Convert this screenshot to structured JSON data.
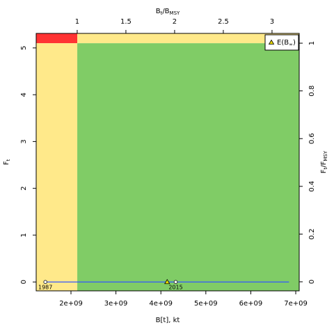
{
  "chart_data": {
    "type": "kobe",
    "xlabel": "B[t], kt",
    "xlabel_top": [
      "B",
      "t",
      "/B",
      "MSY"
    ],
    "ylabel": [
      "F",
      "t"
    ],
    "y2label": [
      "F",
      "t",
      "/F",
      "MSY"
    ],
    "xlim": [
      1226000000,
      7077000000
    ],
    "xticks": [
      {
        "value": 2000000000,
        "label": "2e+09"
      },
      {
        "value": 3000000000,
        "label": "3e+09"
      },
      {
        "value": 4000000000,
        "label": "4e+09"
      },
      {
        "value": 5000000000,
        "label": "5e+09"
      },
      {
        "value": 6000000000,
        "label": "6e+09"
      },
      {
        "value": 7000000000,
        "label": "7e+09"
      }
    ],
    "x2lim": [
      0.579,
      3.279
    ],
    "x2ticks": [
      1,
      1.5,
      2,
      2.5,
      3
    ],
    "ylim": [
      -0.19,
      5.31
    ],
    "yticks": [
      0,
      1,
      2,
      3,
      4,
      5
    ],
    "y2lim": [
      -0.038,
      1.041
    ],
    "y2ticks": [
      0,
      0.2,
      0.4,
      0.6,
      0.8,
      1
    ],
    "bmsy": 2140000000,
    "fmsy": 5.1,
    "region_colors": {
      "low_b_high_f": "#ff3333",
      "high_b_high_f": "#ffe98a",
      "low_b_low_f": "#ffe98a",
      "high_b_low_f": "#80cc66"
    },
    "trajectory": {
      "color": "#3355ff",
      "x": [
        1430000000,
        6850000000,
        4330000000
      ],
      "values": [
        0,
        0,
        0
      ],
      "labels": [
        "1987",
        null,
        "2015"
      ]
    },
    "equilibrium": {
      "name": [
        "E(B",
        "∞",
        ")"
      ],
      "color": "#e8d800",
      "x": 4140000000,
      "value": 0
    }
  }
}
